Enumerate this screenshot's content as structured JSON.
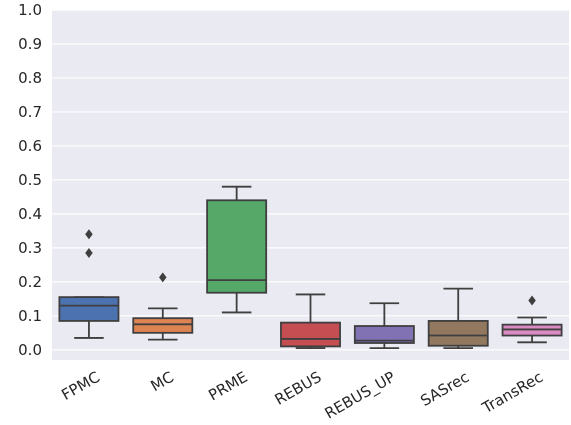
{
  "chart_data": {
    "type": "box",
    "title": "",
    "xlabel": "",
    "ylabel": "",
    "ylim": [
      -0.03,
      1.0
    ],
    "yticks": [
      "0.0",
      "0.1",
      "0.2",
      "0.3",
      "0.4",
      "0.5",
      "0.6",
      "0.7",
      "0.8",
      "0.9",
      "1.0"
    ],
    "grid": true,
    "legend": "none",
    "categories": [
      "FPMC",
      "MC",
      "PRME",
      "REBUS",
      "REBUS_UP",
      "SASrec",
      "TransRec"
    ],
    "boxes": [
      {
        "label": "FPMC",
        "whisker_low": 0.035,
        "q1": 0.085,
        "median": 0.13,
        "q3": 0.155,
        "whisker_high": 0.155,
        "outliers": [
          0.285,
          0.34
        ],
        "color": "#4c72b0"
      },
      {
        "label": "MC",
        "whisker_low": 0.03,
        "q1": 0.05,
        "median": 0.075,
        "q3": 0.093,
        "whisker_high": 0.122,
        "outliers": [
          0.213
        ],
        "color": "#dd8452"
      },
      {
        "label": "PRME",
        "whisker_low": 0.11,
        "q1": 0.168,
        "median": 0.205,
        "q3": 0.44,
        "whisker_high": 0.48,
        "outliers": [],
        "color": "#55a868"
      },
      {
        "label": "REBUS",
        "whisker_low": 0.005,
        "q1": 0.01,
        "median": 0.032,
        "q3": 0.08,
        "whisker_high": 0.163,
        "outliers": [],
        "color": "#c44e52"
      },
      {
        "label": "REBUS_UP",
        "whisker_low": 0.005,
        "q1": 0.02,
        "median": 0.027,
        "q3": 0.07,
        "whisker_high": 0.137,
        "outliers": [],
        "color": "#8172b3"
      },
      {
        "label": "SASrec",
        "whisker_low": 0.005,
        "q1": 0.012,
        "median": 0.042,
        "q3": 0.085,
        "whisker_high": 0.18,
        "outliers": [],
        "color": "#937860"
      },
      {
        "label": "TransRec",
        "whisker_low": 0.022,
        "q1": 0.042,
        "median": 0.06,
        "q3": 0.074,
        "whisker_high": 0.095,
        "outliers": [
          0.145
        ],
        "color": "#da8bc3"
      }
    ]
  }
}
